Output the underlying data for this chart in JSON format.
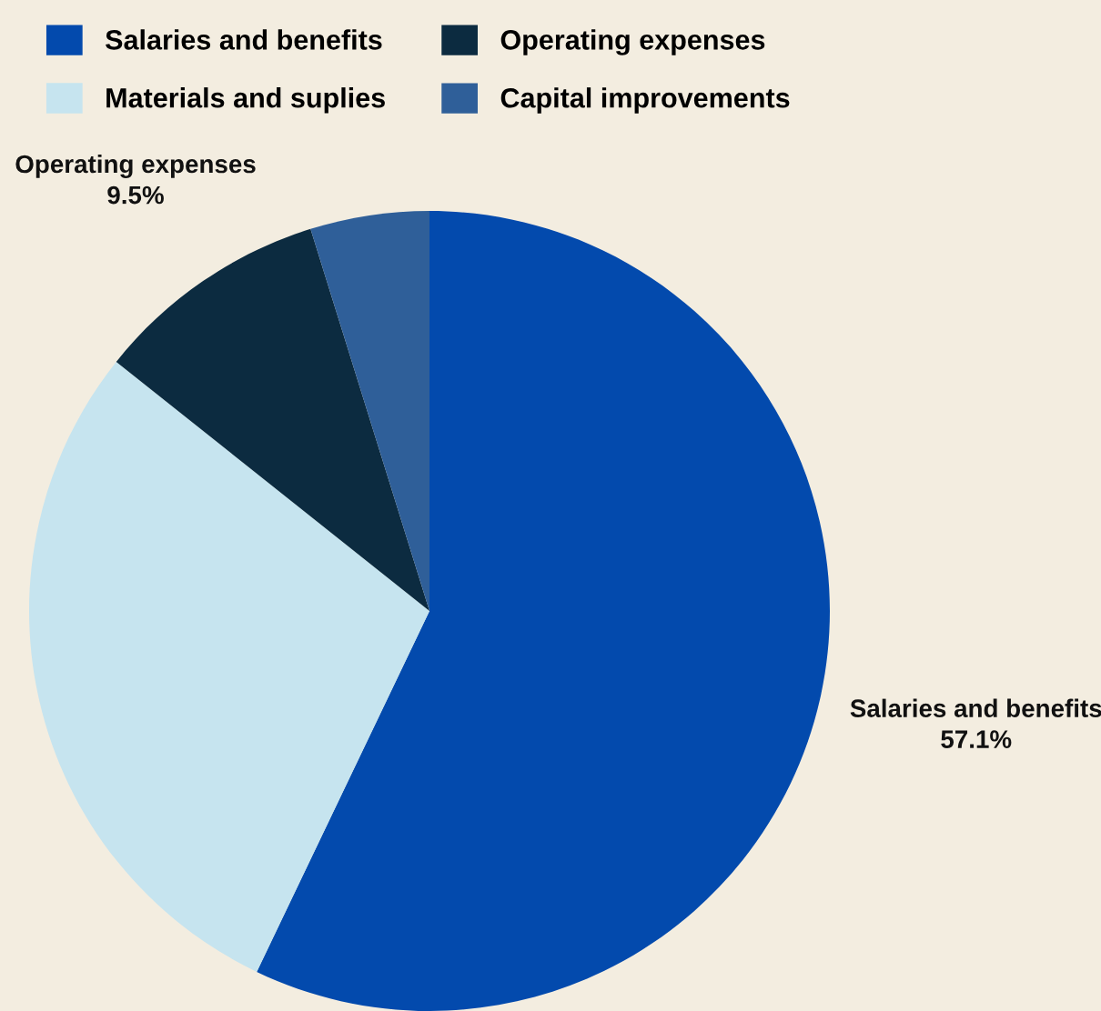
{
  "chart_data": {
    "type": "pie",
    "categories": [
      "Salaries and benefits",
      "Materials and suplies",
      "Operating expenses",
      "Capital improvements"
    ],
    "values": [
      57.1,
      28.6,
      9.5,
      4.8
    ],
    "colors": [
      "#034aad",
      "#c6e4ef",
      "#0c2b40",
      "#2f5f99"
    ],
    "value_labels": [
      "57.1%",
      null,
      "9.5%",
      null
    ],
    "legend": "top"
  }
}
